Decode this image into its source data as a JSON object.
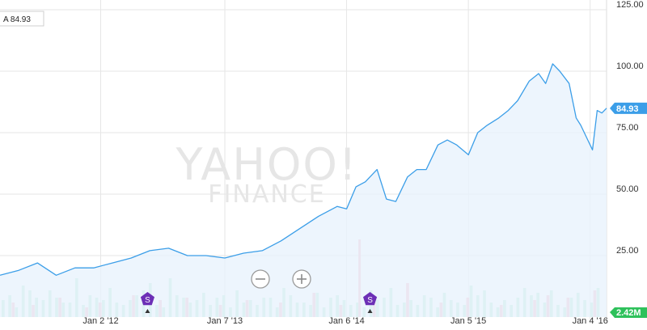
{
  "legend": {
    "label": "A 84.93"
  },
  "watermark": {
    "line1": "YAHOO!",
    "line2": "FINANCE"
  },
  "controls": {
    "zoom_out": "−",
    "zoom_in": "+"
  },
  "colors": {
    "price_line": "#3b9ee8",
    "area_fill": "#e8f3fd",
    "grid": "#e6e6e6",
    "vol_up": "#b4ecd3",
    "vol_down": "#f5b5c2",
    "split_marker": "#6c2fb6",
    "price_badge": "#3b9ee8",
    "volume_badge": "#2ec15b"
  },
  "badges": {
    "price": "84.93",
    "volume": "2.42M"
  },
  "split_label": "S",
  "chart_data": {
    "type": "line",
    "title": "",
    "xlabel": "",
    "ylabel": "",
    "ylim": [
      0,
      125
    ],
    "yticks": [
      "125.00",
      "100.00",
      "75.00",
      "50.00",
      "25.00"
    ],
    "ytick_values": [
      125,
      100,
      75,
      50,
      25
    ],
    "x_tick_labels": [
      "Jan 2 '12",
      "Jan 7 '13",
      "Jan 6 '14",
      "Jan 5 '15",
      "Jan 4 '16"
    ],
    "x_tick_dates": [
      "2012-01-02",
      "2013-01-07",
      "2014-01-06",
      "2015-01-05",
      "2016-01-04"
    ],
    "x_range": [
      "2011-03-07",
      "2016-02-22"
    ],
    "series": [
      {
        "values": [
          [
            "2011-03-07",
            17
          ],
          [
            "2011-05-02",
            19
          ],
          [
            "2011-06-27",
            22
          ],
          [
            "2011-08-22",
            17
          ],
          [
            "2011-10-17",
            20
          ],
          [
            "2011-12-12",
            20
          ],
          [
            "2012-02-06",
            22
          ],
          [
            "2012-04-02",
            24
          ],
          [
            "2012-05-28",
            27
          ],
          [
            "2012-07-23",
            28
          ],
          [
            "2012-09-17",
            25
          ],
          [
            "2012-11-12",
            25
          ],
          [
            "2013-01-07",
            24
          ],
          [
            "2013-03-04",
            26
          ],
          [
            "2013-04-29",
            27
          ],
          [
            "2013-06-24",
            31
          ],
          [
            "2013-08-19",
            36
          ],
          [
            "2013-10-14",
            41
          ],
          [
            "2013-12-09",
            45
          ],
          [
            "2014-01-06",
            44
          ],
          [
            "2014-02-03",
            53
          ],
          [
            "2014-03-03",
            55
          ],
          [
            "2014-04-07",
            60
          ],
          [
            "2014-05-05",
            48
          ],
          [
            "2014-06-02",
            47
          ],
          [
            "2014-07-07",
            57
          ],
          [
            "2014-08-04",
            60
          ],
          [
            "2014-09-01",
            60
          ],
          [
            "2014-10-06",
            70
          ],
          [
            "2014-11-03",
            72
          ],
          [
            "2014-12-01",
            70
          ],
          [
            "2015-01-05",
            66
          ],
          [
            "2015-02-02",
            75
          ],
          [
            "2015-03-02",
            78
          ],
          [
            "2015-04-06",
            81
          ],
          [
            "2015-05-04",
            84
          ],
          [
            "2015-06-01",
            88
          ],
          [
            "2015-07-06",
            96
          ],
          [
            "2015-08-03",
            99
          ],
          [
            "2015-08-24",
            95
          ],
          [
            "2015-09-14",
            103
          ],
          [
            "2015-10-05",
            100
          ],
          [
            "2015-11-02",
            95
          ],
          [
            "2015-11-23",
            81
          ],
          [
            "2015-12-07",
            78
          ],
          [
            "2015-12-28",
            72
          ],
          [
            "2016-01-11",
            68
          ],
          [
            "2016-01-25",
            84
          ],
          [
            "2016-02-08",
            83
          ],
          [
            "2016-02-22",
            84.93
          ]
        ]
      }
    ],
    "volume": {
      "latest": "2.42M",
      "up": [
        7,
        9,
        4,
        13,
        11,
        8,
        7,
        11,
        8,
        6,
        6,
        16,
        5,
        9,
        8,
        7,
        12,
        6,
        5,
        7,
        9,
        11,
        14,
        5,
        4,
        16,
        9,
        8,
        6,
        7,
        10,
        5,
        8,
        9,
        4,
        11,
        6,
        7,
        5,
        8,
        8,
        4,
        12,
        9,
        6,
        6,
        5,
        10,
        4,
        8,
        9,
        7,
        5,
        6,
        4,
        11,
        7,
        8,
        12,
        5,
        6,
        7,
        5,
        9,
        8,
        4,
        10,
        7,
        6,
        5,
        13,
        9,
        11,
        6,
        4,
        7,
        5,
        8,
        12,
        9,
        10,
        6,
        11,
        5,
        4,
        8,
        10,
        7,
        6,
        12
      ],
      "down": [
        0,
        6,
        0,
        0,
        5,
        0,
        0,
        0,
        8,
        0,
        0,
        0,
        4,
        0,
        6,
        0,
        0,
        0,
        0,
        9,
        0,
        0,
        0,
        7,
        0,
        0,
        0,
        8,
        0,
        0,
        0,
        0,
        5,
        0,
        0,
        0,
        7,
        0,
        0,
        0,
        0,
        6,
        0,
        0,
        0,
        0,
        10,
        0,
        0,
        0,
        5,
        0,
        0,
        0,
        0,
        7,
        0,
        0,
        0,
        0,
        14,
        0,
        0,
        0,
        0,
        6,
        0,
        0,
        0,
        8,
        0,
        0,
        0,
        0,
        5,
        0,
        0,
        0,
        0,
        7,
        0,
        9,
        0,
        0,
        8,
        0,
        0,
        0,
        11,
        0
      ],
      "max": 32
    },
    "split_events": [
      "2012-05-21",
      "2014-03-17"
    ],
    "grid": true,
    "legend_position": "top-left"
  }
}
